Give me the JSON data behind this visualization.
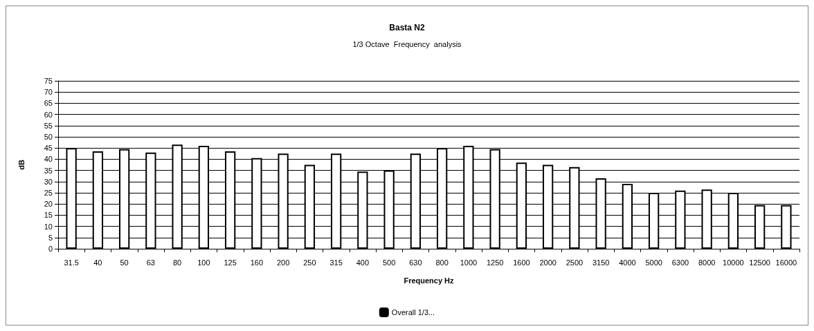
{
  "chart_data": {
    "type": "bar",
    "title": "Basta N2",
    "subtitle": "1/3 Octave  Frequency  analysis",
    "xlabel": "Frequency Hz",
    "ylabel": "dB",
    "categories": [
      "31.5",
      "40",
      "50",
      "63",
      "80",
      "100",
      "125",
      "160",
      "200",
      "250",
      "315",
      "400",
      "500",
      "630",
      "800",
      "1000",
      "1250",
      "1600",
      "2000",
      "2500",
      "3150",
      "4000",
      "5000",
      "6300",
      "8000",
      "10000",
      "12500",
      "16000"
    ],
    "series": [
      {
        "name": "Overall 1/3...",
        "color": "#ffffff",
        "values": [
          45,
          43.5,
          44.5,
          43,
          46.5,
          46,
          43.5,
          40.5,
          42.5,
          37.5,
          42.5,
          34.5,
          35,
          42.5,
          45,
          46,
          44.5,
          38.5,
          37.5,
          36.5,
          31.5,
          29,
          25,
          26,
          26.5,
          25,
          19.5,
          19.5
        ]
      }
    ],
    "ylim": [
      0,
      75
    ],
    "yticks": [
      0,
      5,
      10,
      15,
      20,
      25,
      30,
      35,
      40,
      45,
      50,
      55,
      60,
      65,
      70,
      75
    ],
    "grid": "y",
    "legend": "bottom"
  }
}
